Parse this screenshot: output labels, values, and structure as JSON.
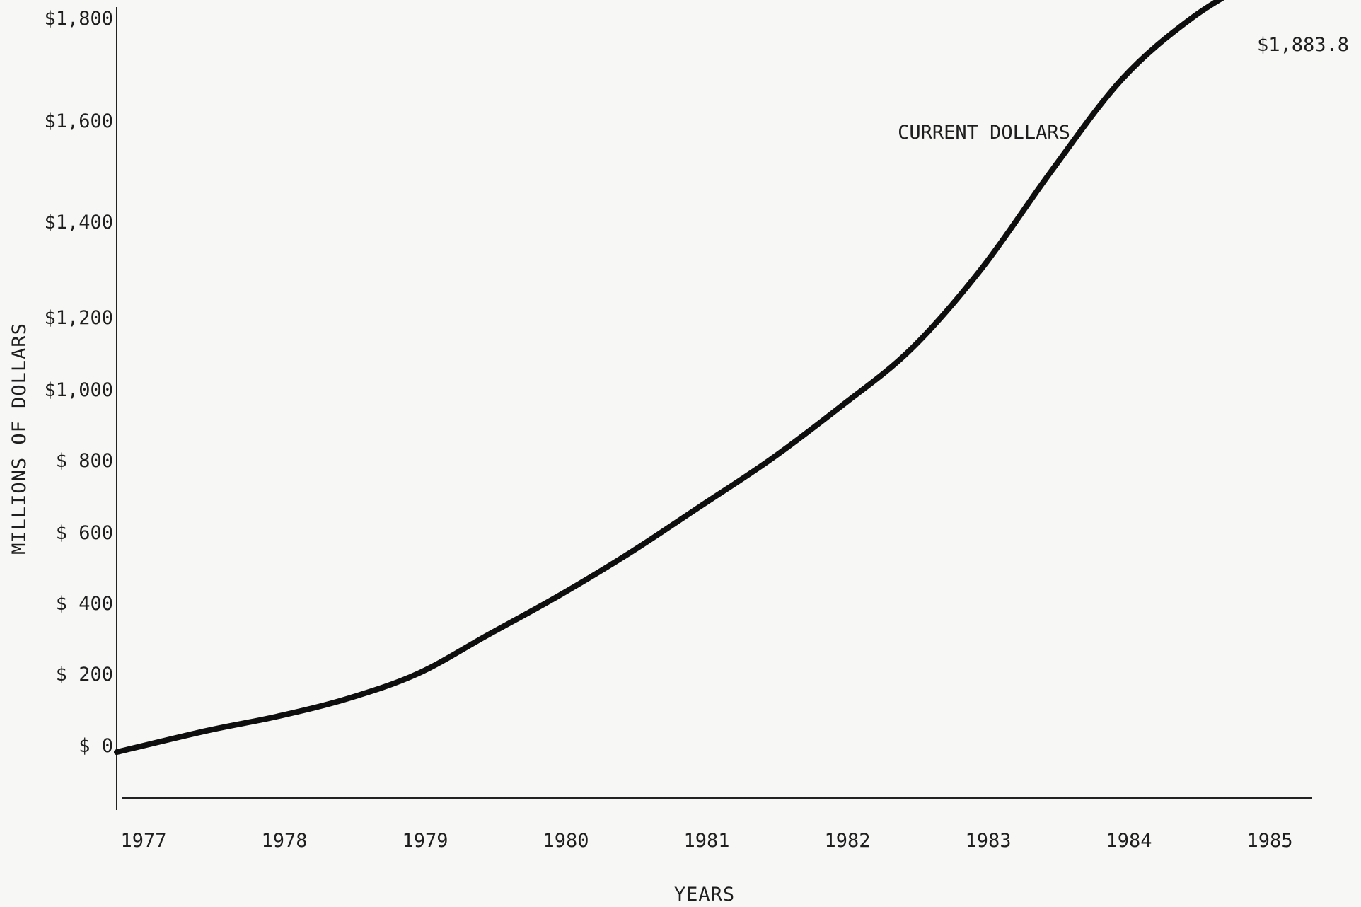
{
  "chart_data": {
    "type": "line",
    "xlabel": "YEARS",
    "ylabel": "MILLIONS OF DOLLARS",
    "x": [
      "1977",
      "1978",
      "1979",
      "1980",
      "1981",
      "1982",
      "1983",
      "1984",
      "1985"
    ],
    "y_tick_labels": [
      "$ 0",
      "$ 200",
      "$ 400",
      "$ 600",
      "$ 800",
      "$1,000",
      "$1,200",
      "$1,400",
      "$1,600",
      "$1,800"
    ],
    "y_ticks": [
      0,
      200,
      400,
      600,
      800,
      1000,
      1200,
      1400,
      1600,
      1800
    ],
    "ylim": [
      -150,
      1800
    ],
    "series": [
      {
        "name": "CURRENT DOLLARS",
        "x": [
          1977,
          1977.5,
          1978,
          1978.5,
          1979,
          1979.5,
          1980,
          1980.5,
          1981,
          1981.5,
          1982,
          1982.5,
          1983,
          1983.5,
          1984,
          1984.5,
          1985
        ],
        "values": [
          -20,
          40,
          80,
          130,
          200,
          310,
          420,
          540,
          670,
          800,
          950,
          1110,
          1300,
          1500,
          1680,
          1800,
          1883.8
        ]
      }
    ],
    "annotations": [
      {
        "text": "CURRENT DOLLARS"
      },
      {
        "text": "$1,883.8"
      }
    ],
    "grid": false,
    "legend": "none"
  }
}
